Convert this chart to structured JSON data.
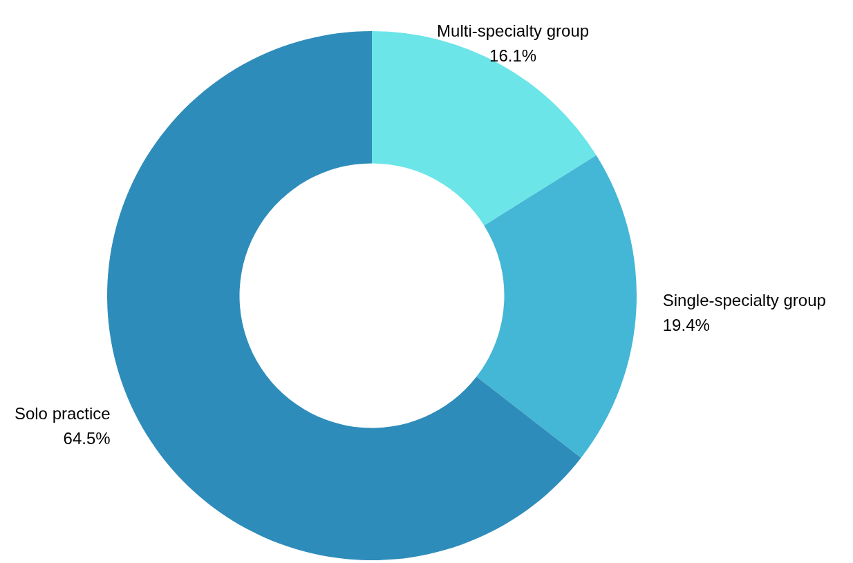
{
  "chart_data": {
    "type": "donut",
    "categories": [
      "Multi-specialty group",
      "Single-specialty group",
      "Solo practice"
    ],
    "values": [
      16.1,
      19.4,
      64.5
    ],
    "colors": [
      "#6be5e8",
      "#43b7d5",
      "#2e8cba"
    ],
    "value_labels": [
      "16.1%",
      "19.4%",
      "64.5%"
    ],
    "legend": false
  }
}
